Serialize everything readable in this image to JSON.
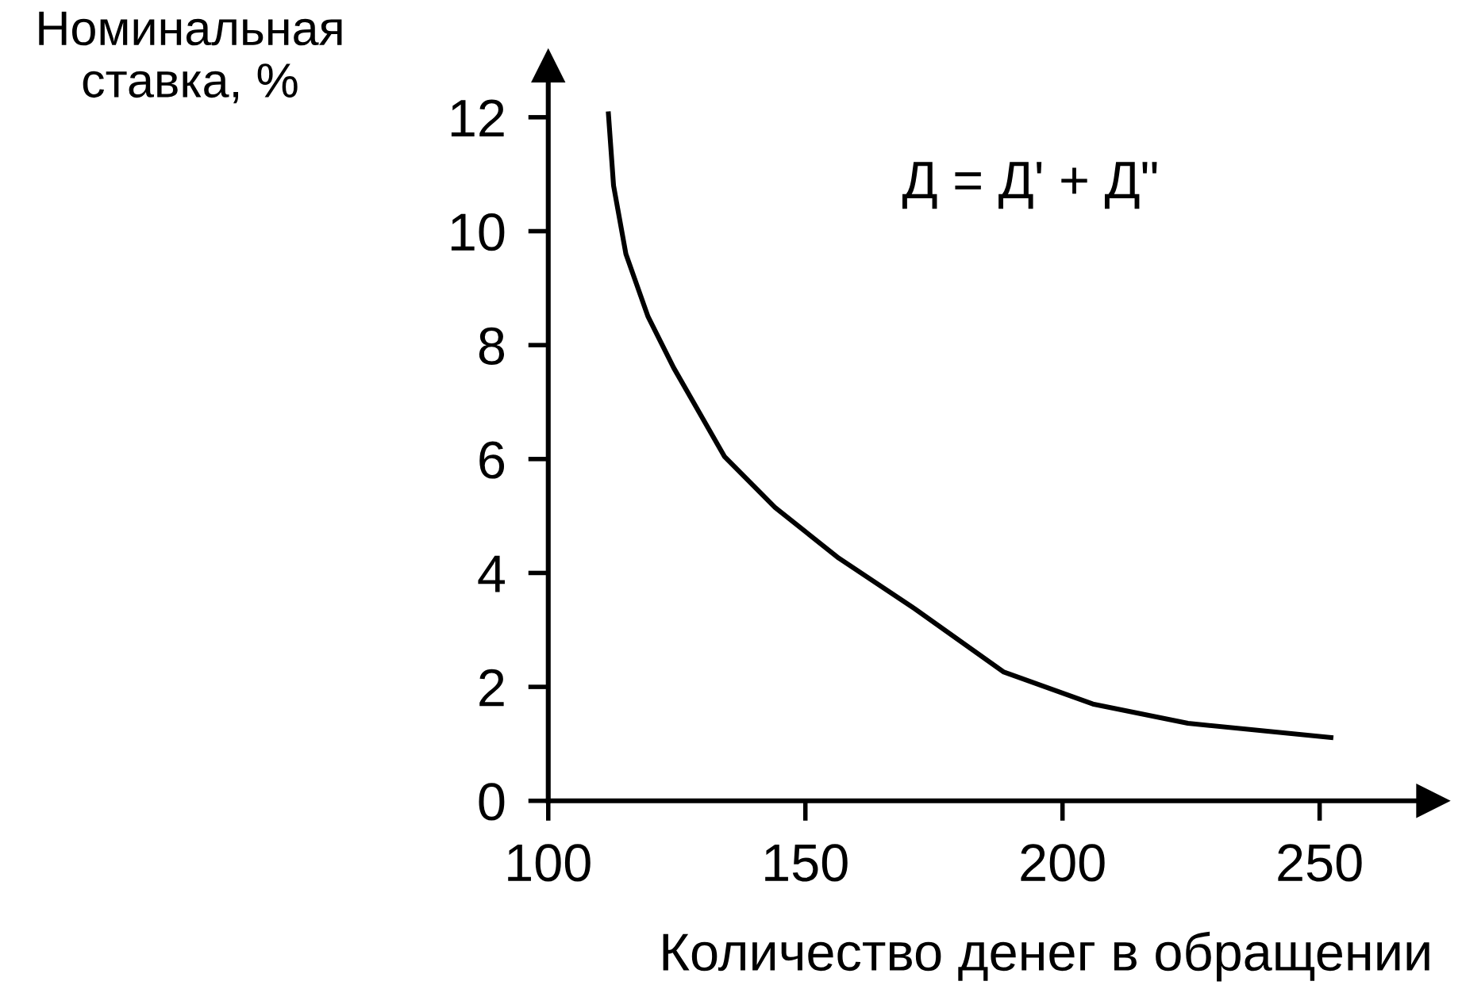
{
  "chart_data": {
    "type": "line",
    "xlabel": "Количество денег в обращении",
    "ylabel": "Номинальная\nставка, %",
    "annotations": [
      "Д = Д' + Д\""
    ],
    "x": [
      111.7,
      112.7,
      115.1,
      119.4,
      124.4,
      134.3,
      144.1,
      156.5,
      171.3,
      188.6,
      205.9,
      224.4,
      252.2
    ],
    "series": [
      {
        "color": "#000000",
        "values": [
          12.06,
          10.8,
          9.6,
          8.5,
          7.6,
          6.04,
          5.15,
          4.26,
          3.37,
          2.26,
          1.7,
          1.36,
          1.11
        ]
      }
    ],
    "xlim": [
      100,
      272
    ],
    "ylim": [
      0,
      12.9
    ],
    "xticks": [
      100,
      150,
      200,
      250
    ],
    "yticks": [
      0,
      2,
      4,
      6,
      8,
      10,
      12
    ],
    "grid": false,
    "legend": false,
    "marker": "none",
    "line_style": "solid"
  }
}
